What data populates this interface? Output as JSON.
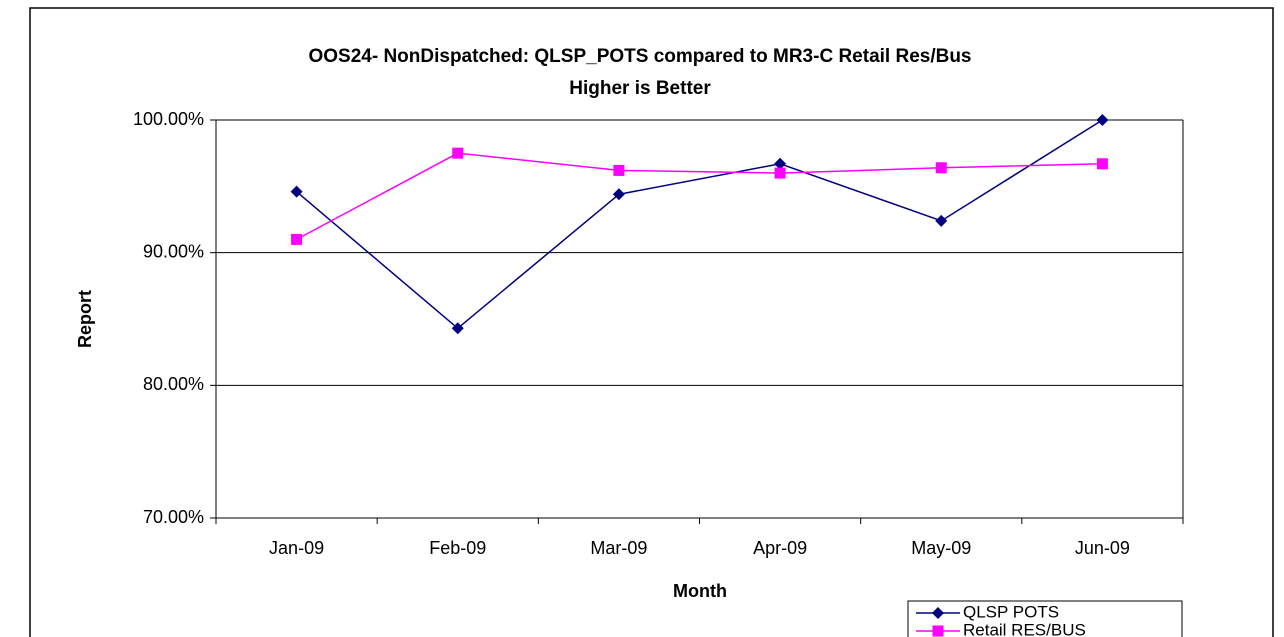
{
  "chart_data": {
    "type": "line",
    "title": "OOS24- NonDispatched: QLSP_POTS compared to MR3-C Retail Res/Bus",
    "subtitle": "Higher is Better",
    "x_label": "Month",
    "y_label": "Report",
    "categories": [
      "Jan-09",
      "Feb-09",
      "Mar-09",
      "Apr-09",
      "May-09",
      "Jun-09"
    ],
    "series": [
      {
        "name": "QLSP POTS",
        "color": "#000080",
        "marker": "diamond",
        "values": [
          94.6,
          84.3,
          94.4,
          96.7,
          92.4,
          100
        ]
      },
      {
        "name": "Retail RES/BUS",
        "color": "#ff00ff",
        "marker": "square",
        "values": [
          91.0,
          97.5,
          96.2,
          96.0,
          96.4,
          96.7
        ]
      }
    ],
    "ylim": [
      70,
      100
    ],
    "yticks": [
      {
        "value": 70,
        "label": "70.00%"
      },
      {
        "value": 80,
        "label": "80.00%"
      },
      {
        "value": 90,
        "label": "90.00%"
      },
      {
        "value": 100,
        "label": "100.00%"
      }
    ],
    "grid": true,
    "legend": "lower right"
  }
}
